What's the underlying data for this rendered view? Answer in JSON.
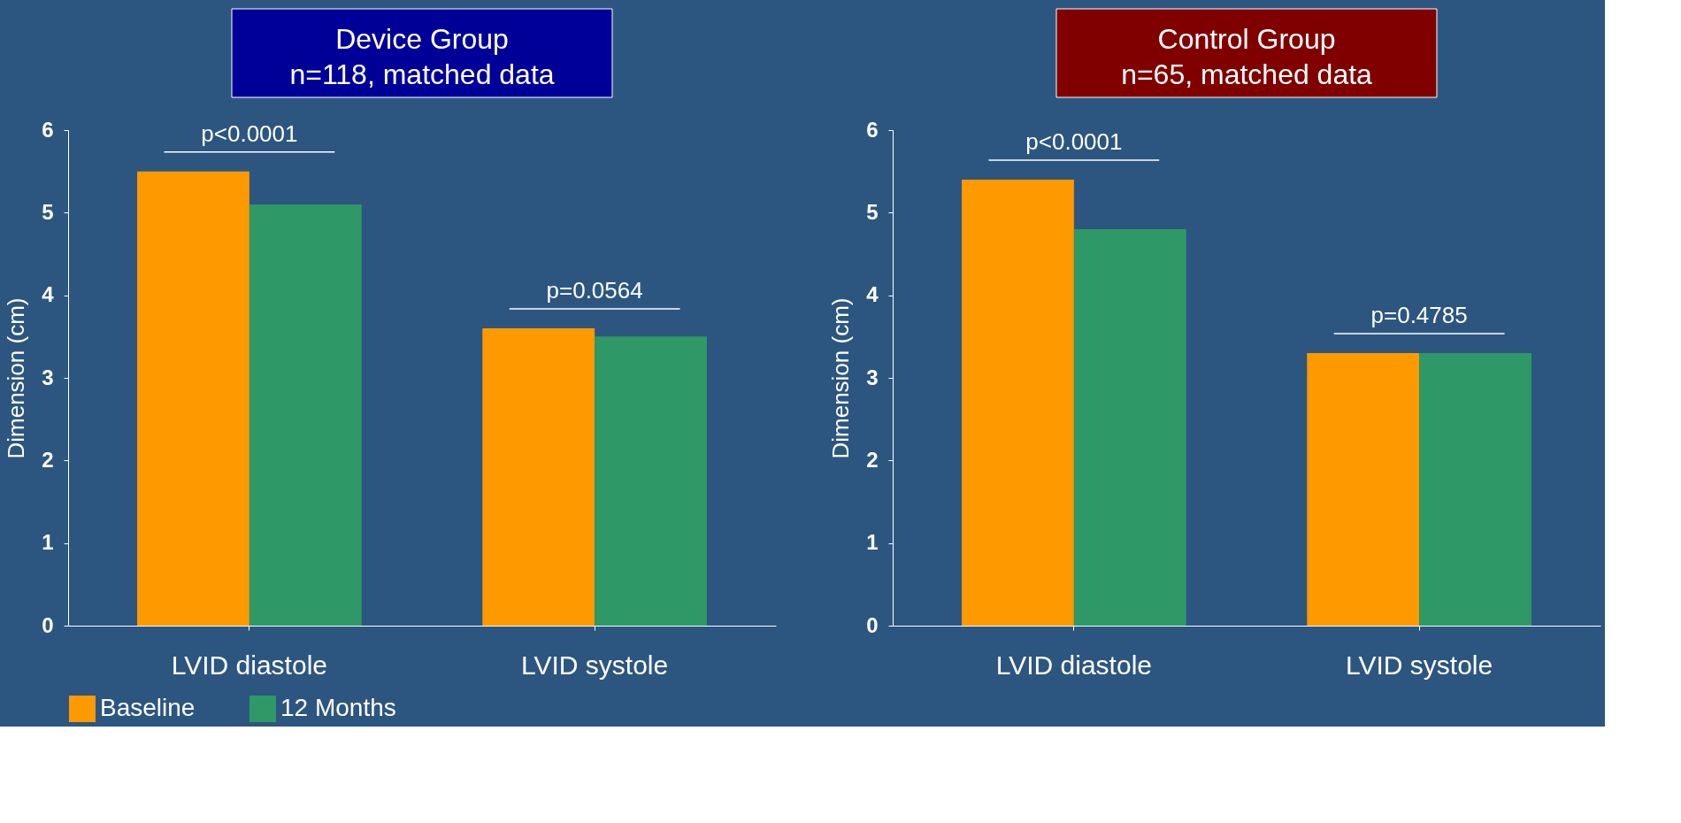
{
  "chart_data": [
    {
      "type": "bar",
      "title": "Device Group",
      "subtitle": "n=118, matched data",
      "ylabel": "Dimension (cm)",
      "categories": [
        "LVID diastole",
        "LVID systole"
      ],
      "ylim": [
        0,
        6
      ],
      "yticks": [
        0,
        1,
        2,
        3,
        4,
        5,
        6
      ],
      "grid": false,
      "legend": "bottom",
      "series": [
        {
          "name": "Baseline",
          "color": "#ff9900",
          "values": [
            5.5,
            3.6
          ]
        },
        {
          "name": "12 Months",
          "color": "#2e9966",
          "values": [
            5.1,
            3.5
          ]
        }
      ],
      "annotations": [
        "p<0.0001",
        "p=0.0564"
      ]
    },
    {
      "type": "bar",
      "title": "Control Group",
      "subtitle": "n=65, matched data",
      "ylabel": "Dimension (cm)",
      "categories": [
        "LVID diastole",
        "LVID systole"
      ],
      "ylim": [
        0,
        6
      ],
      "yticks": [
        0,
        1,
        2,
        3,
        4,
        5,
        6
      ],
      "grid": false,
      "legend": "bottom",
      "series": [
        {
          "name": "Baseline",
          "color": "#ff9900",
          "values": [
            5.4,
            3.3
          ]
        },
        {
          "name": "12 Months",
          "color": "#2e9966",
          "values": [
            4.8,
            3.3
          ]
        }
      ],
      "annotations": [
        "p<0.0001",
        "p=0.4785"
      ]
    }
  ]
}
